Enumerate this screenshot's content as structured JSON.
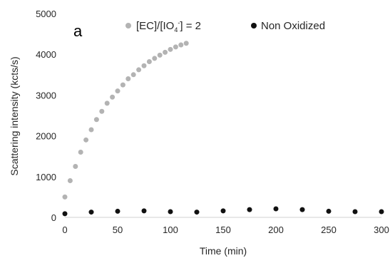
{
  "chart_data": {
    "type": "scatter",
    "panel_label": "a",
    "xlabel": "Time (min)",
    "ylabel": "Scattering intensity (kcts/s)",
    "xlim": [
      0,
      300
    ],
    "ylim": [
      0,
      5000
    ],
    "x_ticks": [
      "0",
      "50",
      "100",
      "150",
      "200",
      "250",
      "300"
    ],
    "y_ticks": [
      "0",
      "1000",
      "2000",
      "3000",
      "4000",
      "5000"
    ],
    "grid": false,
    "legend_position": "top",
    "legend": {
      "oxidized_prefix": "[EC]/[IO",
      "oxidized_sub": "4",
      "oxidized_sup": "-",
      "oxidized_suffix": "] = 2",
      "non_oxidized": "Non Oxidized"
    },
    "series": [
      {
        "name": "[EC]/[IO4-] = 2",
        "color": "#b3b3b3",
        "x": [
          0,
          5,
          10,
          15,
          20,
          25,
          30,
          35,
          40,
          45,
          50,
          55,
          60,
          65,
          70,
          75,
          80,
          85,
          90,
          95,
          100,
          105,
          110,
          115
        ],
        "y": [
          500,
          900,
          1250,
          1600,
          1900,
          2150,
          2400,
          2600,
          2800,
          2950,
          3100,
          3250,
          3400,
          3500,
          3620,
          3720,
          3820,
          3900,
          3980,
          4050,
          4120,
          4180,
          4230,
          4270
        ]
      },
      {
        "name": "Non Oxidized",
        "color": "#111111",
        "x": [
          0,
          25,
          50,
          75,
          100,
          125,
          150,
          175,
          200,
          225,
          250,
          275,
          300
        ],
        "y": [
          90,
          130,
          150,
          160,
          140,
          130,
          160,
          190,
          210,
          190,
          150,
          140,
          140
        ]
      }
    ]
  }
}
